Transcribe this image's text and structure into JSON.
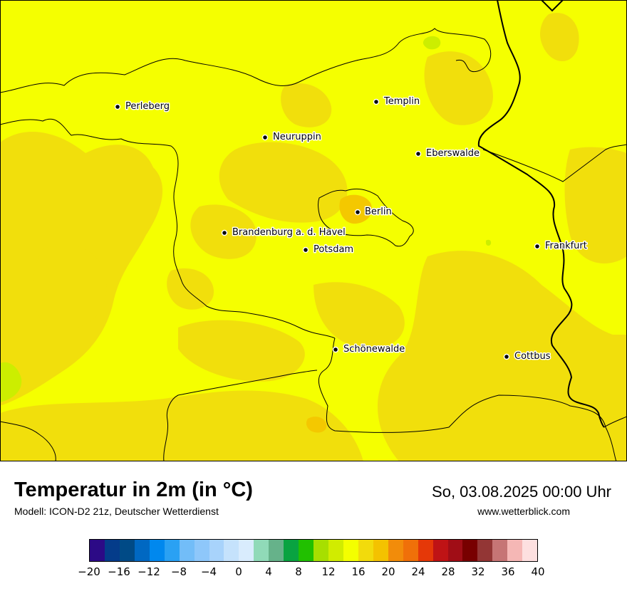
{
  "map": {
    "cities": [
      {
        "name": "Perleberg"
      },
      {
        "name": "Templin"
      },
      {
        "name": "Neuruppin"
      },
      {
        "name": "Eberswalde"
      },
      {
        "name": "Berlin"
      },
      {
        "name": "Brandenburg a. d. Havel"
      },
      {
        "name": "Potsdam"
      },
      {
        "name": "Frankfurt"
      },
      {
        "name": "Schönewalde"
      },
      {
        "name": "Cottbus"
      }
    ],
    "colors": {
      "base": "#f5ff00",
      "warm": "#f1df0c",
      "warmer": "#f4c800",
      "cool": "#ccee00",
      "border": "#000000"
    }
  },
  "footer": {
    "title": "Temperatur in 2m (in °C)",
    "subtitle": "Modell: ICON-D2 21z, Deutscher Wetterdienst",
    "datetime": "So, 03.08.2025 00:00 Uhr",
    "website": "www.wetterblick.com"
  },
  "legend": {
    "colors": [
      "#2c0a86",
      "#043c8a",
      "#004a86",
      "#0068c2",
      "#0088ee",
      "#2aa1f3",
      "#72bdf8",
      "#8ec7fa",
      "#a8d3fb",
      "#c5e2fc",
      "#d9ecfd",
      "#90dab8",
      "#66b28a",
      "#09a341",
      "#21c000",
      "#a7df00",
      "#d1ec00",
      "#f4ff00",
      "#f2db0c",
      "#f4c200",
      "#f28c0a",
      "#f07009",
      "#e53808",
      "#bf1315",
      "#a00d16",
      "#780000",
      "#933635",
      "#c67575",
      "#f5b7b5",
      "#fde0e0"
    ],
    "ticks": [
      "−20",
      "−16",
      "−12",
      "−8",
      "−4",
      "0",
      "4",
      "8",
      "12",
      "16",
      "20",
      "24",
      "28",
      "32",
      "36",
      "40"
    ],
    "min": -20,
    "max": 40
  }
}
